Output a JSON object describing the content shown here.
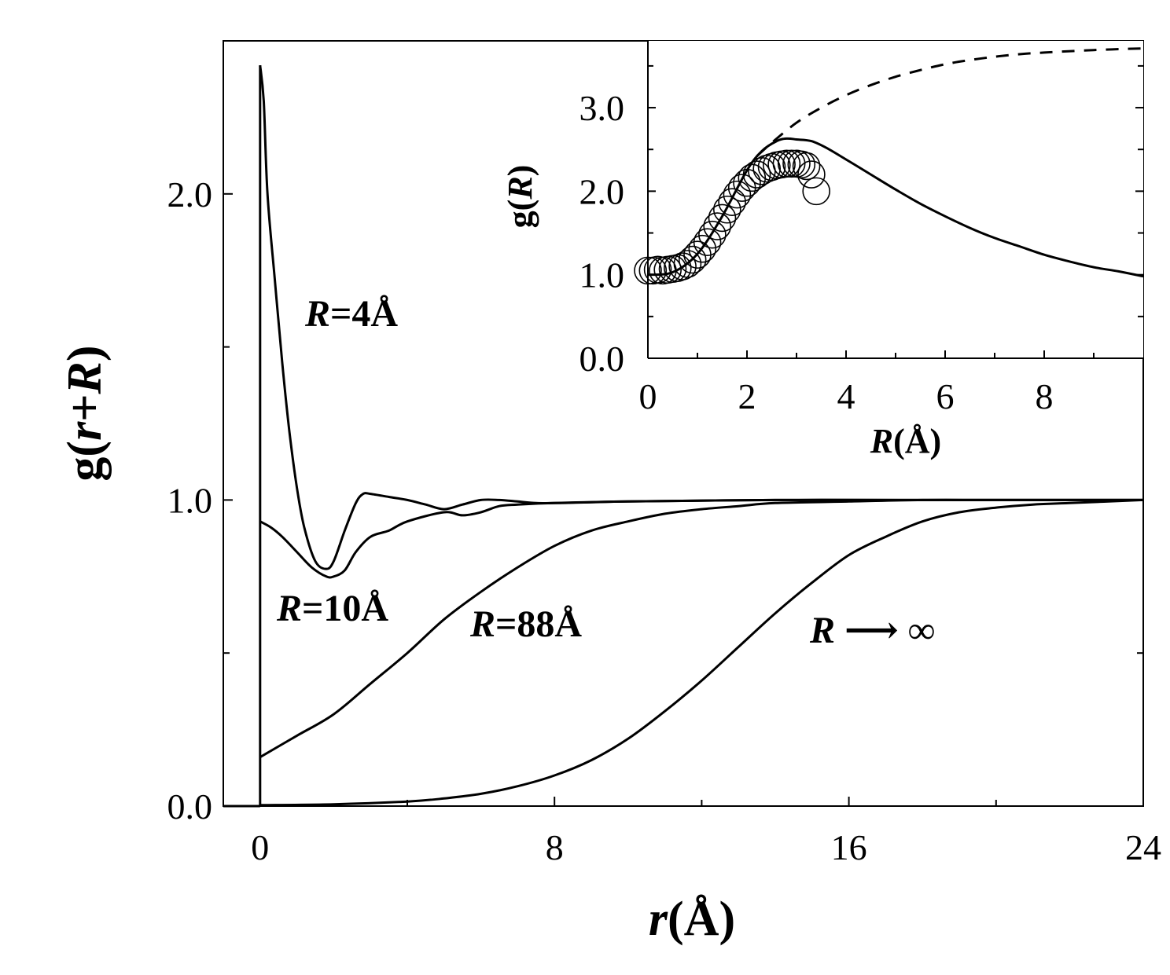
{
  "chart_data": [
    {
      "type": "line",
      "panel": "main",
      "ylabel": {
        "pre": "g(",
        "v1": "r",
        "mid": "+",
        "v2": "R",
        "post": ")"
      },
      "xlabel": {
        "var": "r",
        "unit": "(Å)"
      },
      "xlim": [
        -1,
        24
      ],
      "ylim": [
        0,
        2.5
      ],
      "xticks": [
        "0",
        "8",
        "16",
        "24"
      ],
      "xtick_values": [
        0,
        8,
        16,
        24
      ],
      "minor_xticks": [
        4,
        12,
        20
      ],
      "yticks": [
        "0.0",
        "1.0",
        "2.0"
      ],
      "ytick_values": [
        0,
        1,
        2
      ],
      "minor_yticks": [
        0.5,
        1.5
      ],
      "grid": false,
      "series": [
        {
          "name": "R=4Å",
          "label_var": "R",
          "label_text": "=4Å",
          "x": [
            0.0,
            0.1,
            0.2,
            0.4,
            0.6,
            0.8,
            1.0,
            1.2,
            1.5,
            1.8,
            2.0,
            2.3,
            2.6,
            2.8,
            3.0,
            3.5,
            4.0,
            4.5,
            5.0,
            5.5,
            6.0,
            6.5,
            7.0,
            7.5,
            8.0,
            10.0,
            14.0,
            18.0,
            24.0
          ],
          "y": [
            2.42,
            2.3,
            2.0,
            1.72,
            1.45,
            1.22,
            1.04,
            0.91,
            0.8,
            0.775,
            0.8,
            0.9,
            0.99,
            1.02,
            1.02,
            1.01,
            1.0,
            0.985,
            0.97,
            0.985,
            1.0,
            1.0,
            0.995,
            0.99,
            0.99,
            0.995,
            1.0,
            1.0,
            1.0
          ]
        },
        {
          "name": "R=10Å",
          "label_var": "R",
          "label_text": "=10Å",
          "x": [
            0.0,
            0.3,
            0.6,
            1.0,
            1.4,
            1.8,
            2.0,
            2.3,
            2.6,
            3.0,
            3.5,
            4.0,
            5.0,
            5.5,
            6.0,
            6.5,
            7.0,
            8.0,
            10.0,
            14.0,
            18.0,
            24.0
          ],
          "y": [
            0.93,
            0.91,
            0.88,
            0.83,
            0.78,
            0.75,
            0.75,
            0.77,
            0.83,
            0.88,
            0.9,
            0.93,
            0.96,
            0.95,
            0.96,
            0.98,
            0.985,
            0.99,
            0.995,
            1.0,
            1.0,
            1.0
          ]
        },
        {
          "name": "R=88Å",
          "label_var": "R",
          "label_text": "=88Å",
          "x": [
            0.0,
            1.0,
            2.0,
            3.0,
            4.0,
            5.0,
            6.0,
            7.0,
            8.0,
            9.0,
            10.0,
            11.0,
            12.0,
            13.0,
            14.0,
            16.0,
            18.0,
            20.0,
            24.0
          ],
          "y": [
            0.16,
            0.23,
            0.3,
            0.4,
            0.5,
            0.61,
            0.7,
            0.78,
            0.85,
            0.9,
            0.93,
            0.955,
            0.97,
            0.98,
            0.99,
            0.995,
            1.0,
            1.0,
            1.0
          ]
        },
        {
          "name": "R → ∞",
          "label_var": "R",
          "label_text": " ⟶ ∞",
          "x": [
            0.0,
            2.0,
            4.0,
            5.0,
            6.0,
            7.0,
            8.0,
            9.0,
            10.0,
            11.0,
            12.0,
            13.0,
            14.0,
            15.0,
            16.0,
            17.0,
            18.0,
            19.0,
            20.0,
            21.0,
            22.0,
            24.0
          ],
          "y": [
            0.003,
            0.006,
            0.015,
            0.025,
            0.04,
            0.065,
            0.1,
            0.15,
            0.22,
            0.31,
            0.41,
            0.52,
            0.63,
            0.73,
            0.82,
            0.88,
            0.93,
            0.96,
            0.975,
            0.985,
            0.99,
            1.0
          ]
        }
      ]
    },
    {
      "type": "line",
      "panel": "inset",
      "ylabel": {
        "pre": "g(",
        "var": "R",
        "post": ")"
      },
      "xlabel": {
        "var": "R",
        "unit": "(Å)"
      },
      "xlim": [
        0,
        10
      ],
      "ylim": [
        0,
        3.8
      ],
      "xticks": [
        "0",
        "2",
        "4",
        "6",
        "8"
      ],
      "xtick_values": [
        0,
        2,
        4,
        6,
        8
      ],
      "minor_xticks": [
        1,
        3,
        5,
        7,
        9
      ],
      "yticks": [
        "0.0",
        "1.0",
        "2.0",
        "3.0"
      ],
      "ytick_values": [
        0,
        1,
        2,
        3
      ],
      "minor_yticks": [
        0.5,
        1.5,
        2.5,
        3.5
      ],
      "grid": false,
      "series": [
        {
          "style": "solid",
          "x": [
            0.0,
            0.5,
            1.0,
            1.5,
            2.0,
            2.3,
            2.6,
            2.8,
            3.0,
            3.3,
            3.6,
            4.0,
            4.5,
            5.0,
            5.5,
            6.0,
            6.5,
            7.0,
            7.5,
            8.0,
            8.5,
            9.0,
            9.5,
            10.0
          ],
          "y": [
            1.0,
            1.03,
            1.25,
            1.7,
            2.25,
            2.48,
            2.6,
            2.63,
            2.62,
            2.6,
            2.52,
            2.38,
            2.2,
            2.02,
            1.85,
            1.7,
            1.56,
            1.44,
            1.34,
            1.24,
            1.16,
            1.09,
            1.04,
            0.98
          ]
        },
        {
          "style": "dashed",
          "x": [
            2.2,
            2.5,
            3.0,
            3.5,
            4.0,
            4.5,
            5.0,
            5.5,
            6.0,
            6.5,
            7.0,
            7.5,
            8.0,
            9.0,
            10.0
          ],
          "y": [
            2.42,
            2.58,
            2.82,
            3.0,
            3.15,
            3.27,
            3.37,
            3.45,
            3.52,
            3.57,
            3.61,
            3.64,
            3.66,
            3.69,
            3.71
          ]
        },
        {
          "style": "circles",
          "x": [
            0.0,
            0.1,
            0.2,
            0.3,
            0.4,
            0.5,
            0.6,
            0.7,
            0.8,
            0.9,
            1.0,
            1.1,
            1.2,
            1.3,
            1.4,
            1.5,
            1.6,
            1.7,
            1.8,
            1.9,
            2.0,
            2.1,
            2.2,
            2.3,
            2.4,
            2.5,
            2.6,
            2.7,
            2.8,
            2.9,
            3.0,
            3.1,
            3.2,
            3.3,
            3.4
          ],
          "y": [
            1.05,
            1.05,
            1.06,
            1.05,
            1.06,
            1.07,
            1.08,
            1.1,
            1.13,
            1.18,
            1.24,
            1.31,
            1.39,
            1.48,
            1.58,
            1.68,
            1.78,
            1.87,
            1.96,
            2.04,
            2.1,
            2.16,
            2.2,
            2.24,
            2.27,
            2.29,
            2.31,
            2.32,
            2.33,
            2.33,
            2.33,
            2.32,
            2.3,
            2.2,
            2.0
          ]
        }
      ]
    }
  ]
}
